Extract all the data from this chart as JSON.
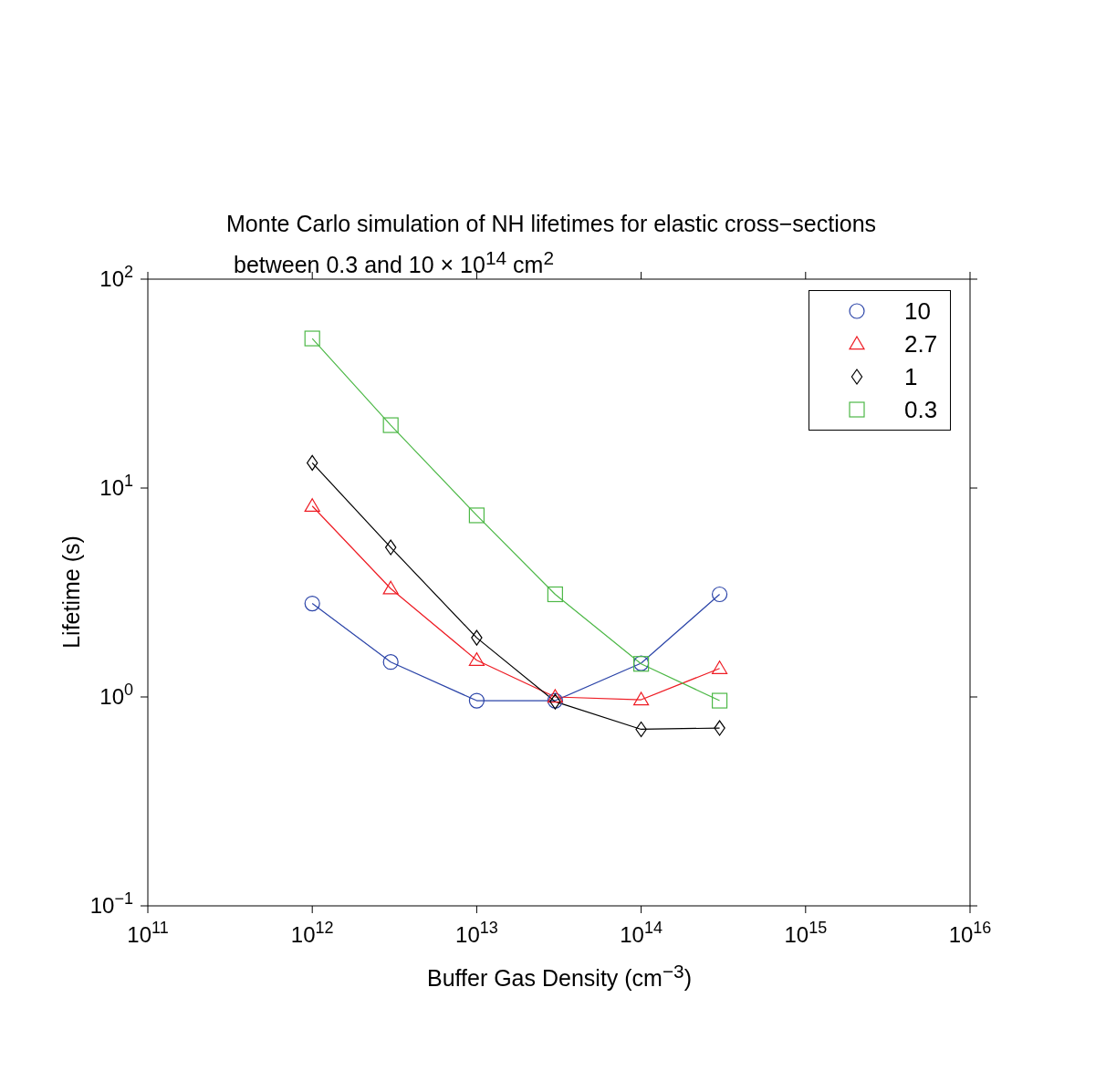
{
  "chart_data": {
    "type": "line",
    "title": "Monte Carlo simulation of NH lifetimes for elastic cross−sections",
    "subtitle": "between 0.3 and 10 × 10$^{14}$ cm$^{2}$",
    "xlabel": "Buffer Gas Density (cm$^{−3}$)",
    "ylabel": "Lifetime (s)",
    "log": "xy",
    "legend": "top right",
    "x": [
      1000000000000.0,
      3000000000000.0,
      10000000000000.0,
      30000000000000.0,
      100000000000000.0,
      300000000000000.0
    ],
    "series": [
      {
        "name": "10",
        "color": "#2b44a8",
        "marker": "circle",
        "values": [
          2.8,
          1.47,
          0.96,
          0.96,
          1.45,
          3.1
        ]
      },
      {
        "name": "2.7",
        "color": "#ee1c24",
        "marker": "triangle",
        "values": [
          8.2,
          3.3,
          1.5,
          1.0,
          0.97,
          1.37
        ]
      },
      {
        "name": "1",
        "color": "#000000",
        "marker": "diamond",
        "values": [
          13.2,
          5.2,
          1.92,
          0.95,
          0.7,
          0.71
        ]
      },
      {
        "name": "0.3",
        "color": "#4db847",
        "marker": "square",
        "values": [
          52,
          20,
          7.4,
          3.1,
          1.44,
          0.96
        ]
      }
    ],
    "xlim": [
      100000000000.0,
      1e+16
    ],
    "xticks": [
      {
        "value": 100000000000.0,
        "label": "10$^{11}$"
      },
      {
        "value": 1000000000000.0,
        "label": "10$^{12}$"
      },
      {
        "value": 10000000000000.0,
        "label": "10$^{13}$"
      },
      {
        "value": 100000000000000.0,
        "label": "10$^{14}$"
      },
      {
        "value": 1000000000000000.0,
        "label": "10$^{15}$"
      },
      {
        "value": 1e+16,
        "label": "10$^{16}$"
      }
    ],
    "ylim": [
      0.1,
      100
    ],
    "yticks": [
      {
        "value": 0.1,
        "label": "10$^{−1}$"
      },
      {
        "value": 1,
        "label": "10$^{0}$"
      },
      {
        "value": 10,
        "label": "10$^{1}$"
      },
      {
        "value": 100,
        "label": "10$^{2}$"
      }
    ]
  }
}
